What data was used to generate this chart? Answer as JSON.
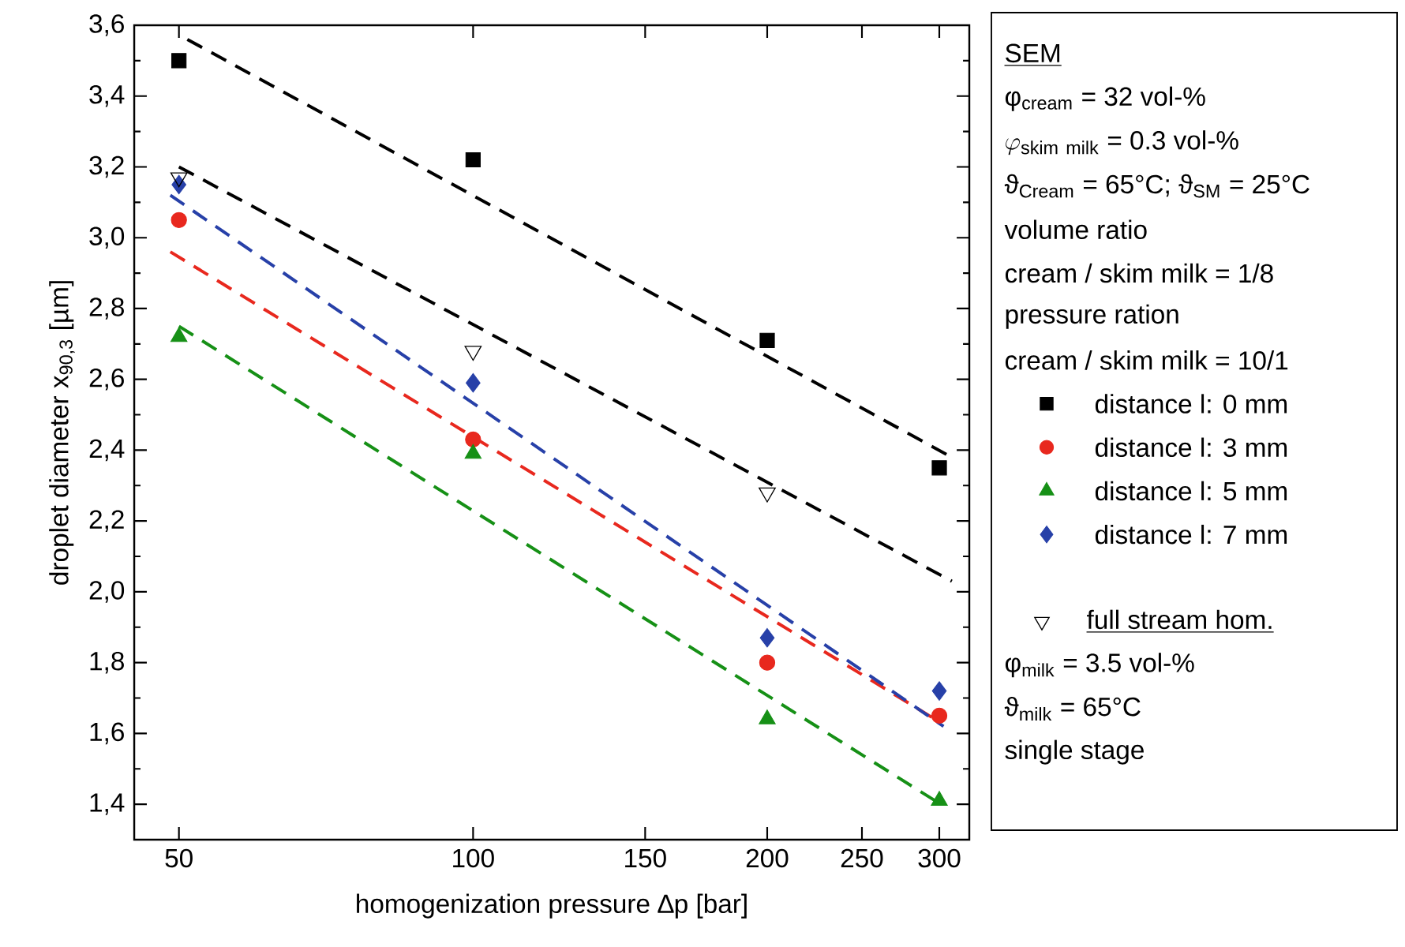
{
  "chart_data": {
    "type": "scatter",
    "xlabel": "homogenization pressure ∆p [bar]",
    "ylabel": "droplet diameter x$_{90,3}$ [µm]",
    "log": "x",
    "xlim": [
      45,
      322
    ],
    "xticks": [
      50,
      100,
      150,
      200,
      250,
      300
    ],
    "ylim": [
      1.3,
      3.6
    ],
    "yticks": [
      {
        "value": 1.4,
        "label": "1,4"
      },
      {
        "value": 1.6,
        "label": "1,6"
      },
      {
        "value": 1.8,
        "label": "1,8"
      },
      {
        "value": 2.0,
        "label": "2,0"
      },
      {
        "value": 2.2,
        "label": "2,2"
      },
      {
        "value": 2.4,
        "label": "2,4"
      },
      {
        "value": 2.6,
        "label": "2,6"
      },
      {
        "value": 2.8,
        "label": "2,8"
      },
      {
        "value": 3.0,
        "label": "3,0"
      },
      {
        "value": 3.2,
        "label": "3,2"
      },
      {
        "value": 3.4,
        "label": "3,4"
      },
      {
        "value": 3.6,
        "label": "3,6"
      }
    ],
    "legend": "right",
    "annotations": [
      "SEM",
      "φ$_{cream}$ = 32 vol-%",
      "\\varphi_{\\mathrm{skim\\ milk}}\\ \\hbox{= 0.3 vol-\\%}",
      "ϑ$_{Cream}$ = 65°C; ϑ$_{SM}$ = 25°C",
      "volume ratio",
      "cream / skim milk = 1/8",
      "pressure ration",
      "cream / skim milk = 10/1",
      "φ$_{milk}$ = 3.5 vol-%",
      "ϑ$_{milk}$ = 65°C",
      "single stage"
    ],
    "series": [
      {
        "name": "distance l: 0 mm",
        "type": "scatter",
        "marker": "square",
        "color": "#000000",
        "x": [
          50,
          100,
          200,
          300
        ],
        "values": [
          3.5,
          3.22,
          2.71,
          2.35
        ]
      },
      {
        "name": "distance l: 3 mm",
        "type": "scatter",
        "marker": "circle",
        "color": "#e8281e",
        "x": [
          50,
          100,
          200,
          300
        ],
        "values": [
          3.05,
          2.43,
          1.8,
          1.65
        ]
      },
      {
        "name": "distance l: 5 mm",
        "type": "scatter",
        "marker": "triangle",
        "color": "#169016",
        "x": [
          50,
          100,
          200,
          300
        ],
        "values": [
          2.72,
          2.39,
          1.64,
          1.41
        ]
      },
      {
        "name": "distance l: 7 mm",
        "type": "scatter",
        "marker": "diamond",
        "color": "#2740a8",
        "x": [
          50,
          100,
          200,
          300
        ],
        "values": [
          3.15,
          2.59,
          1.87,
          1.72
        ]
      },
      {
        "name": "full stream hom.",
        "type": "scatter",
        "marker": "triangle",
        "color": "#000000",
        "x": [
          50,
          100,
          200
        ],
        "values": [
          3.17,
          2.68,
          2.28
        ]
      },
      {
        "type": "line",
        "line_style": "dashed",
        "color": "#000000",
        "x": [
          51,
          309
        ],
        "values": [
          3.56,
          2.38
        ]
      },
      {
        "type": "line",
        "line_style": "dashed",
        "color": "#e8281e",
        "x": [
          49,
          297
        ],
        "values": [
          2.96,
          1.64
        ]
      },
      {
        "type": "line",
        "line_style": "dashed",
        "color": "#169016",
        "x": [
          50,
          301
        ],
        "values": [
          2.75,
          1.4
        ]
      },
      {
        "type": "line",
        "line_style": "dashed",
        "color": "#2740a8",
        "x": [
          49,
          303
        ],
        "values": [
          3.12,
          1.62
        ]
      },
      {
        "type": "line",
        "line_style": "dashed",
        "color": "#000000",
        "x": [
          50,
          309
        ],
        "values": [
          3.2,
          2.03
        ]
      }
    ]
  }
}
